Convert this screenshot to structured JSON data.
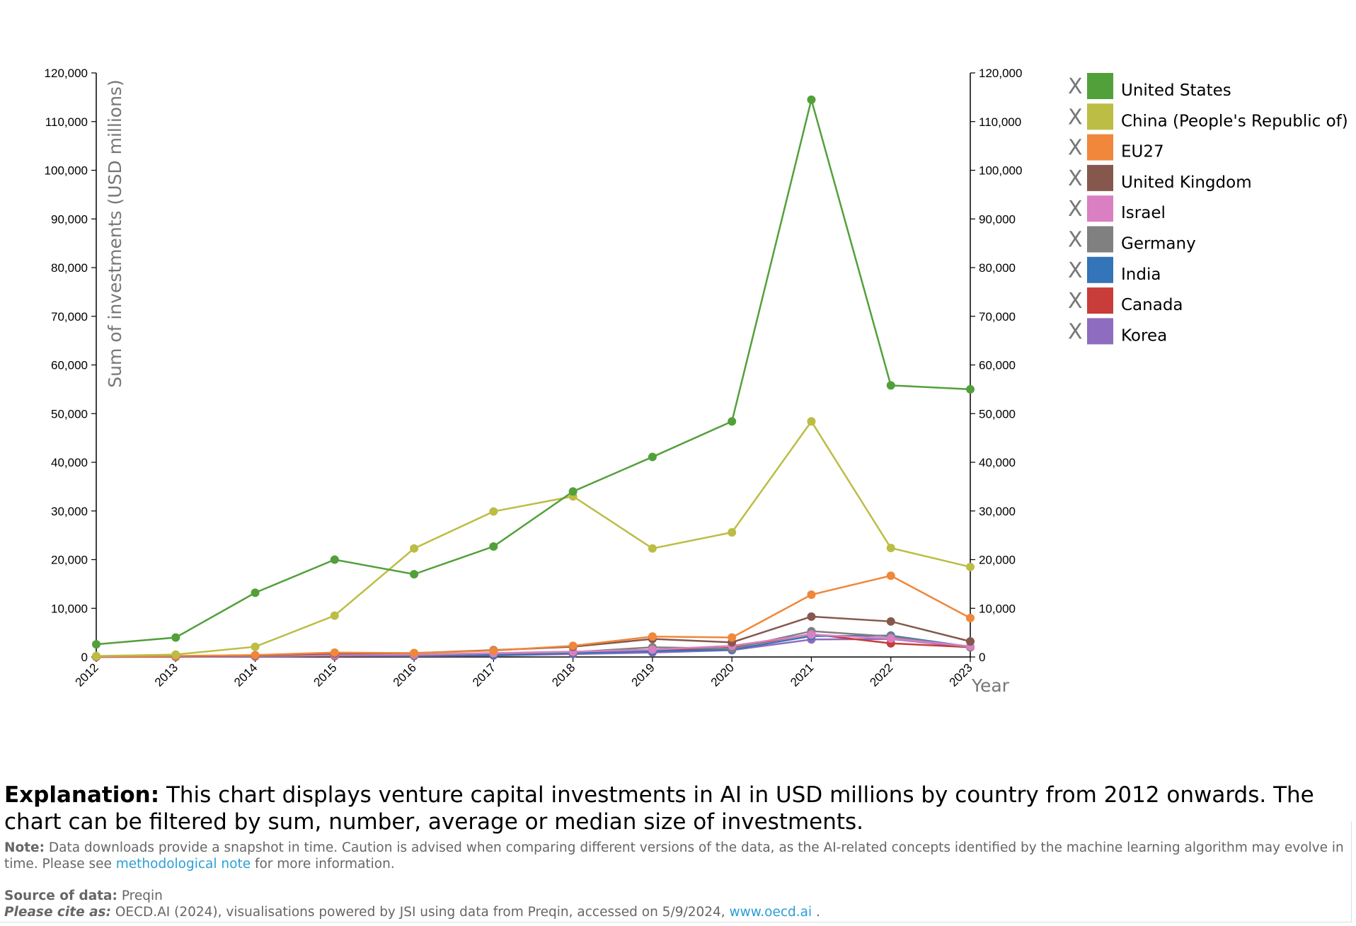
{
  "chart_data": {
    "type": "line",
    "xlabel": "Year",
    "ylabel": "Sum of investments (USD millions)",
    "ylim": [
      0,
      120000
    ],
    "y_ticks": [
      0,
      10000,
      20000,
      30000,
      40000,
      50000,
      60000,
      70000,
      80000,
      90000,
      100000,
      110000,
      120000
    ],
    "y_tick_labels": [
      "0",
      "10,000",
      "20,000",
      "30,000",
      "40,000",
      "50,000",
      "60,000",
      "70,000",
      "80,000",
      "90,000",
      "100,000",
      "110,000",
      "120,000"
    ],
    "dual_y_axis": true,
    "x": [
      "2012",
      "2013",
      "2014",
      "2015",
      "2016",
      "2017",
      "2018",
      "2019",
      "2020",
      "2021",
      "2022",
      "2023"
    ],
    "legend_position": "right",
    "series": [
      {
        "name": "United States",
        "color": "#52a03a",
        "values": [
          2600,
          4000,
          13200,
          20000,
          17000,
          22700,
          34000,
          41100,
          48400,
          114500,
          55800,
          55000
        ]
      },
      {
        "name": "China (People's Republic of)",
        "color": "#bcbd44",
        "values": [
          200,
          500,
          2100,
          8500,
          22300,
          29900,
          33000,
          22300,
          25600,
          48400,
          22400,
          18500
        ]
      },
      {
        "name": "EU27",
        "color": "#f0873a",
        "values": [
          100,
          200,
          400,
          900,
          800,
          1300,
          2300,
          4200,
          4000,
          12800,
          16700,
          8000
        ]
      },
      {
        "name": "United Kingdom",
        "color": "#86584d",
        "values": [
          50,
          100,
          300,
          700,
          800,
          1400,
          2100,
          3700,
          3000,
          8300,
          7300,
          3200
        ]
      },
      {
        "name": "Israel",
        "color": "#d97fc2",
        "values": [
          20,
          50,
          200,
          400,
          500,
          800,
          1100,
          1500,
          2300,
          4600,
          3800,
          2200
        ]
      },
      {
        "name": "Germany",
        "color": "#808080",
        "values": [
          20,
          50,
          200,
          500,
          400,
          700,
          1000,
          2000,
          1700,
          5300,
          4200,
          2000
        ]
      },
      {
        "name": "India",
        "color": "#3474b8",
        "values": [
          10,
          50,
          150,
          300,
          300,
          400,
          800,
          1200,
          1500,
          4300,
          4400,
          2100
        ]
      },
      {
        "name": "Canada",
        "color": "#c83c3a",
        "values": [
          20,
          50,
          100,
          200,
          300,
          500,
          800,
          1300,
          1900,
          4700,
          2800,
          2000
        ]
      },
      {
        "name": "Korea",
        "color": "#8e6cbf",
        "values": [
          10,
          20,
          100,
          200,
          200,
          300,
          600,
          900,
          1400,
          3600,
          3700,
          2000
        ]
      }
    ]
  },
  "legend": {
    "remove_symbol": "X"
  },
  "footer": {
    "explanation_label": "Explanation:",
    "explanation_text": " This chart displays venture capital investments in AI in USD millions by country from 2012 onwards. The chart can be filtered by sum, number, average or median size of investments.",
    "note_label": "Note:",
    "note_text_1": " Data downloads provide a snapshot in time. Caution is advised when comparing different versions of the data, as the AI-related concepts identified by the machine learning algorithm may evolve in time. Please see ",
    "note_link": "methodological note",
    "note_text_2": " for more information.",
    "source_label": "Source of data:",
    "source_text": " Preqin",
    "cite_label": "Please cite as:",
    "cite_text": " OECD.AI (2024), visualisations powered by JSI using data from Preqin, accessed on 5/9/2024, ",
    "cite_link": "www.oecd.ai",
    "cite_end": " ."
  }
}
